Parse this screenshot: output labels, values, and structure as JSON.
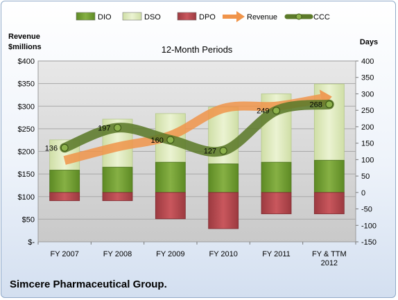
{
  "chart_data": {
    "type": "bar",
    "subtitle": "12-Month Periods",
    "footer": "Simcere Pharmaceutical Group.",
    "ylabel_left": [
      "Revenue",
      "$millions"
    ],
    "ylabel_right": "Days",
    "categories": [
      [
        "FY 2007"
      ],
      [
        "FY 2008"
      ],
      [
        "FY 2009"
      ],
      [
        "FY 2010"
      ],
      [
        "FY 2011"
      ],
      [
        "FY & TTM",
        "2012"
      ]
    ],
    "left_axis": {
      "min": 0,
      "max": 400,
      "step": 50,
      "tick_labels": [
        "$-",
        "$50",
        "$100",
        "$150",
        "$200",
        "$250",
        "$300",
        "$350",
        "$400"
      ]
    },
    "right_axis": {
      "min": -150,
      "max": 400,
      "step": 50,
      "tick_labels": [
        "-150",
        "-100",
        "-50",
        "0",
        "50",
        "100",
        "150",
        "200",
        "250",
        "300",
        "350",
        "400"
      ]
    },
    "series": [
      {
        "name": "DIO",
        "axis": "right",
        "kind": "stacked-bar",
        "color": "#6f9a2f",
        "values": [
          68,
          77,
          92,
          87,
          92,
          98
        ]
      },
      {
        "name": "DSO",
        "axis": "right",
        "kind": "stacked-bar",
        "color": "#dce9b8",
        "values": [
          92,
          146,
          148,
          173,
          208,
          232
        ]
      },
      {
        "name": "DPO",
        "axis": "right",
        "kind": "bar-negative",
        "color": "#b84a50",
        "values": [
          -25,
          -25,
          -80,
          -110,
          -65,
          -65
        ]
      },
      {
        "name": "Revenue",
        "axis": "left",
        "kind": "arrow-line",
        "color": "#f0944a",
        "values": [
          180,
          210,
          235,
          295,
          300,
          320
        ]
      },
      {
        "name": "CCC",
        "axis": "right",
        "kind": "line",
        "color": "#5c7a2a",
        "values": [
          136,
          197,
          160,
          127,
          249,
          268
        ]
      }
    ],
    "data_labels": [
      "136",
      "197",
      "160",
      "127",
      "249",
      "268"
    ],
    "legend": {
      "position": "top",
      "items": [
        {
          "name": "DIO",
          "kind": "bar",
          "color": "#6f9a2f"
        },
        {
          "name": "DSO",
          "kind": "bar",
          "color": "#dce9b8"
        },
        {
          "name": "DPO",
          "kind": "bar",
          "color": "#b84a50"
        },
        {
          "name": "Revenue",
          "kind": "arrow",
          "color": "#f0944a"
        },
        {
          "name": "CCC",
          "kind": "line",
          "color": "#5c7a2a"
        }
      ]
    }
  }
}
